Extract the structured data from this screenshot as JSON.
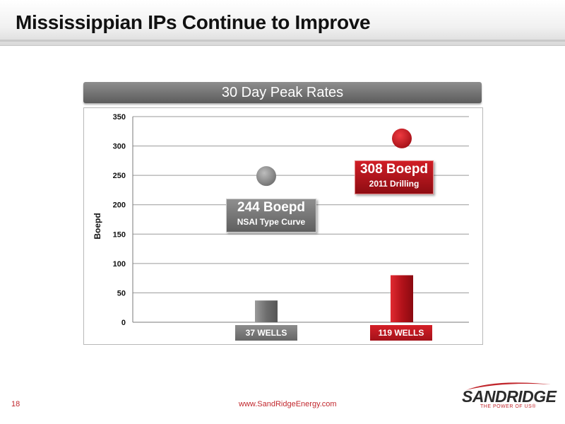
{
  "page": {
    "title": "Mississippian IPs Continue to Improve",
    "page_number": "18",
    "url": "www.SandRidgeEnergy.com",
    "logo": {
      "name": "SANDRIDGE",
      "tagline": "THE POWER OF US®"
    }
  },
  "colors": {
    "gray": "#7f7f7f",
    "red": "#c1141c",
    "dark_text": "#111111"
  },
  "chart_data": {
    "type": "bar",
    "title": "30 Day Peak Rates",
    "ylabel": "Boepd",
    "xlabel": "",
    "ylim": [
      0,
      350
    ],
    "yticks": [
      0,
      50,
      100,
      150,
      200,
      250,
      300,
      350
    ],
    "grid": true,
    "categories": [
      "37 WELLS",
      "119 WELLS"
    ],
    "bar_heights": [
      37,
      80
    ],
    "peak_rates": [
      244,
      308
    ],
    "callouts": [
      {
        "value_label": "244 Boepd",
        "sub_label": "NSAI Type Curve"
      },
      {
        "value_label": "308 Boepd",
        "sub_label": "2011 Drilling"
      }
    ]
  }
}
